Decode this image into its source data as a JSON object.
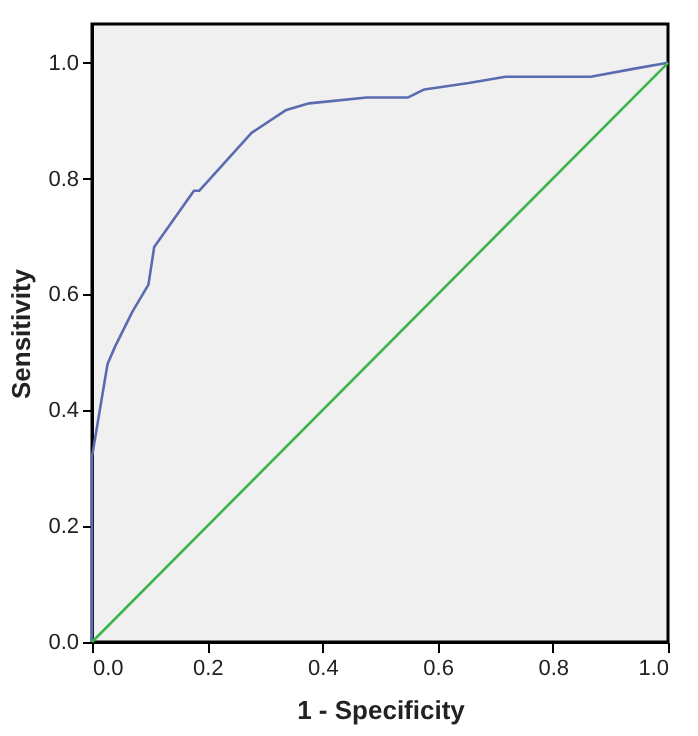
{
  "chart_data": {
    "type": "line",
    "xlabel": "1 - Specificity",
    "ylabel": "Sensitivity",
    "xlim": [
      0,
      1
    ],
    "ylim": [
      0,
      1.067
    ],
    "xticks": [
      {
        "value": 0,
        "label": "0.0"
      },
      0.2,
      0.4,
      0.6,
      0.8,
      {
        "value": 1,
        "label": "1.0"
      }
    ],
    "yticks": [
      {
        "value": 0,
        "label": "0.0"
      },
      0.2,
      0.4,
      0.6,
      0.8,
      {
        "value": 1,
        "label": "1.0"
      }
    ],
    "grid": false,
    "legend": false,
    "marker": "none",
    "line_style": "solid",
    "series": [
      {
        "color": "#5a6bb0",
        "x": [
          0,
          0,
          0.027,
          0.04,
          0.07,
          0.098,
          0.108,
          0.177,
          0.186,
          0.277,
          0.336,
          0.377,
          0.477,
          0.548,
          0.577,
          0.654,
          0.718,
          0.866,
          0.942,
          1
        ],
        "values": [
          0,
          0.32,
          0.48,
          0.51,
          0.57,
          0.617,
          0.682,
          0.779,
          0.779,
          0.879,
          0.918,
          0.93,
          0.94,
          0.94,
          0.954,
          0.965,
          0.976,
          0.976,
          0.99,
          1
        ]
      },
      {
        "color": "#3cb44b",
        "x": [
          0,
          1
        ],
        "values": [
          0,
          1
        ]
      }
    ]
  }
}
